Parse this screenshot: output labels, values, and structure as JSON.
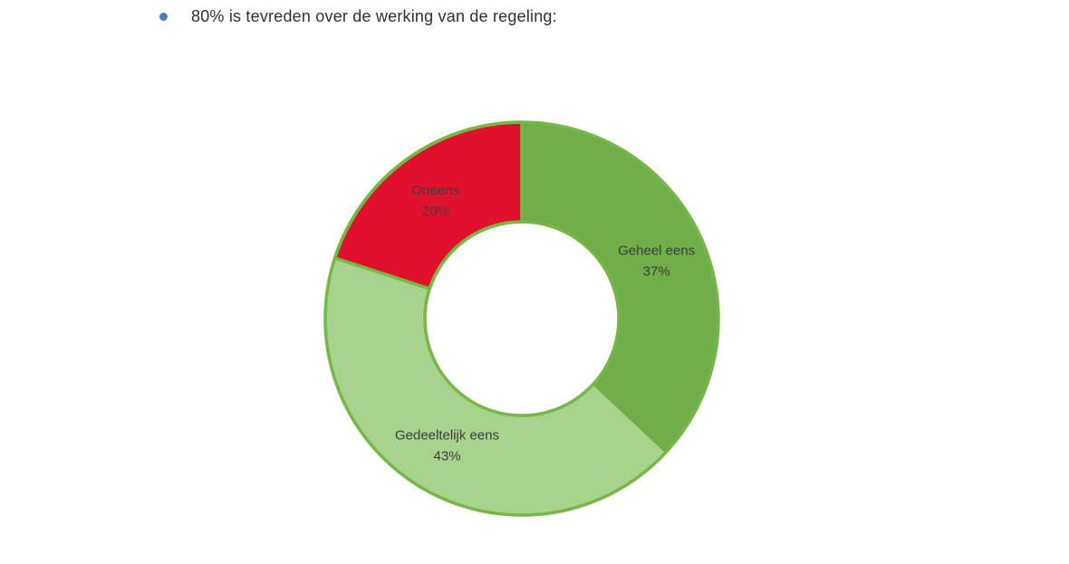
{
  "bullet": {
    "text": "80% is tevreden over de werking van de regeling:",
    "dot_color": "#4E79B7"
  },
  "chart_data": {
    "type": "pie",
    "subtype": "donut",
    "title": "",
    "legend": "none",
    "start_angle_deg": 0,
    "direction": "clockwise",
    "hole_ratio": 0.49,
    "label_placement": "inside slices at mid-radius, category name above percent",
    "categories": [
      "Geheel eens",
      "Gedeeltelijk eens",
      "Oneens"
    ],
    "values": [
      37,
      43,
      20
    ],
    "slices": [
      {
        "name": "Geheel eens",
        "value": 37,
        "value_label": "37%",
        "color": "#6FAE49",
        "border": false
      },
      {
        "name": "Gedeeltelijk eens",
        "value": 43,
        "value_label": "43%",
        "color": "#A7D38C",
        "border": false
      },
      {
        "name": "Oneens",
        "value": 20,
        "value_label": "20%",
        "color": "#E1112E",
        "border": true
      }
    ],
    "ring_border_color": "#75B845",
    "label_color": "#3D3D3D"
  }
}
